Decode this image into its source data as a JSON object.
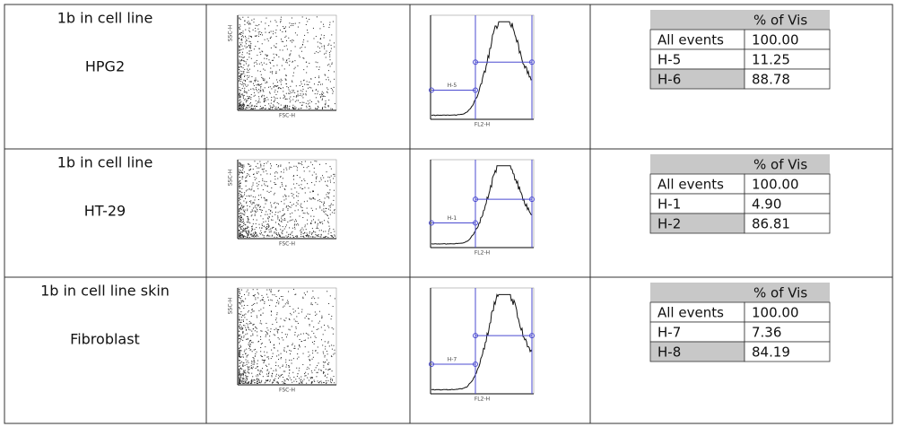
{
  "rows": [
    {
      "label_line1": "1b in cell line",
      "label_line2": "HPG2",
      "scatter": {
        "x_axis": "FSC-H",
        "y_axis": "SSC-H"
      },
      "histogram": {
        "x_axis": "FL2-H",
        "gate_label": "H-5"
      },
      "stats": {
        "header": "% of Vis",
        "rows": [
          [
            "All events",
            "100.00"
          ],
          [
            "H-5",
            "11.25"
          ],
          [
            "H-6",
            "88.78"
          ]
        ]
      }
    },
    {
      "label_line1": "1b in cell line",
      "label_line2": "HT-29",
      "scatter": {
        "x_axis": "FSC-H",
        "y_axis": "SSC-H"
      },
      "histogram": {
        "x_axis": "FL2-H",
        "gate_label": "H-1"
      },
      "stats": {
        "header": "% of Vis",
        "rows": [
          [
            "All events",
            "100.00"
          ],
          [
            "H-1",
            "4.90"
          ],
          [
            "H-2",
            "86.81"
          ]
        ]
      }
    },
    {
      "label_line1": "1b in cell line skin",
      "label_line2": "Fibroblast",
      "scatter": {
        "x_axis": "FSC-H",
        "y_axis": "SSC-H"
      },
      "histogram": {
        "x_axis": "FL2-H",
        "gate_label": "H-7"
      },
      "stats": {
        "header": "% of Vis",
        "rows": [
          [
            "All events",
            "100.00"
          ],
          [
            "H-7",
            "7.36"
          ],
          [
            "H-8",
            "84.19"
          ]
        ]
      }
    }
  ]
}
